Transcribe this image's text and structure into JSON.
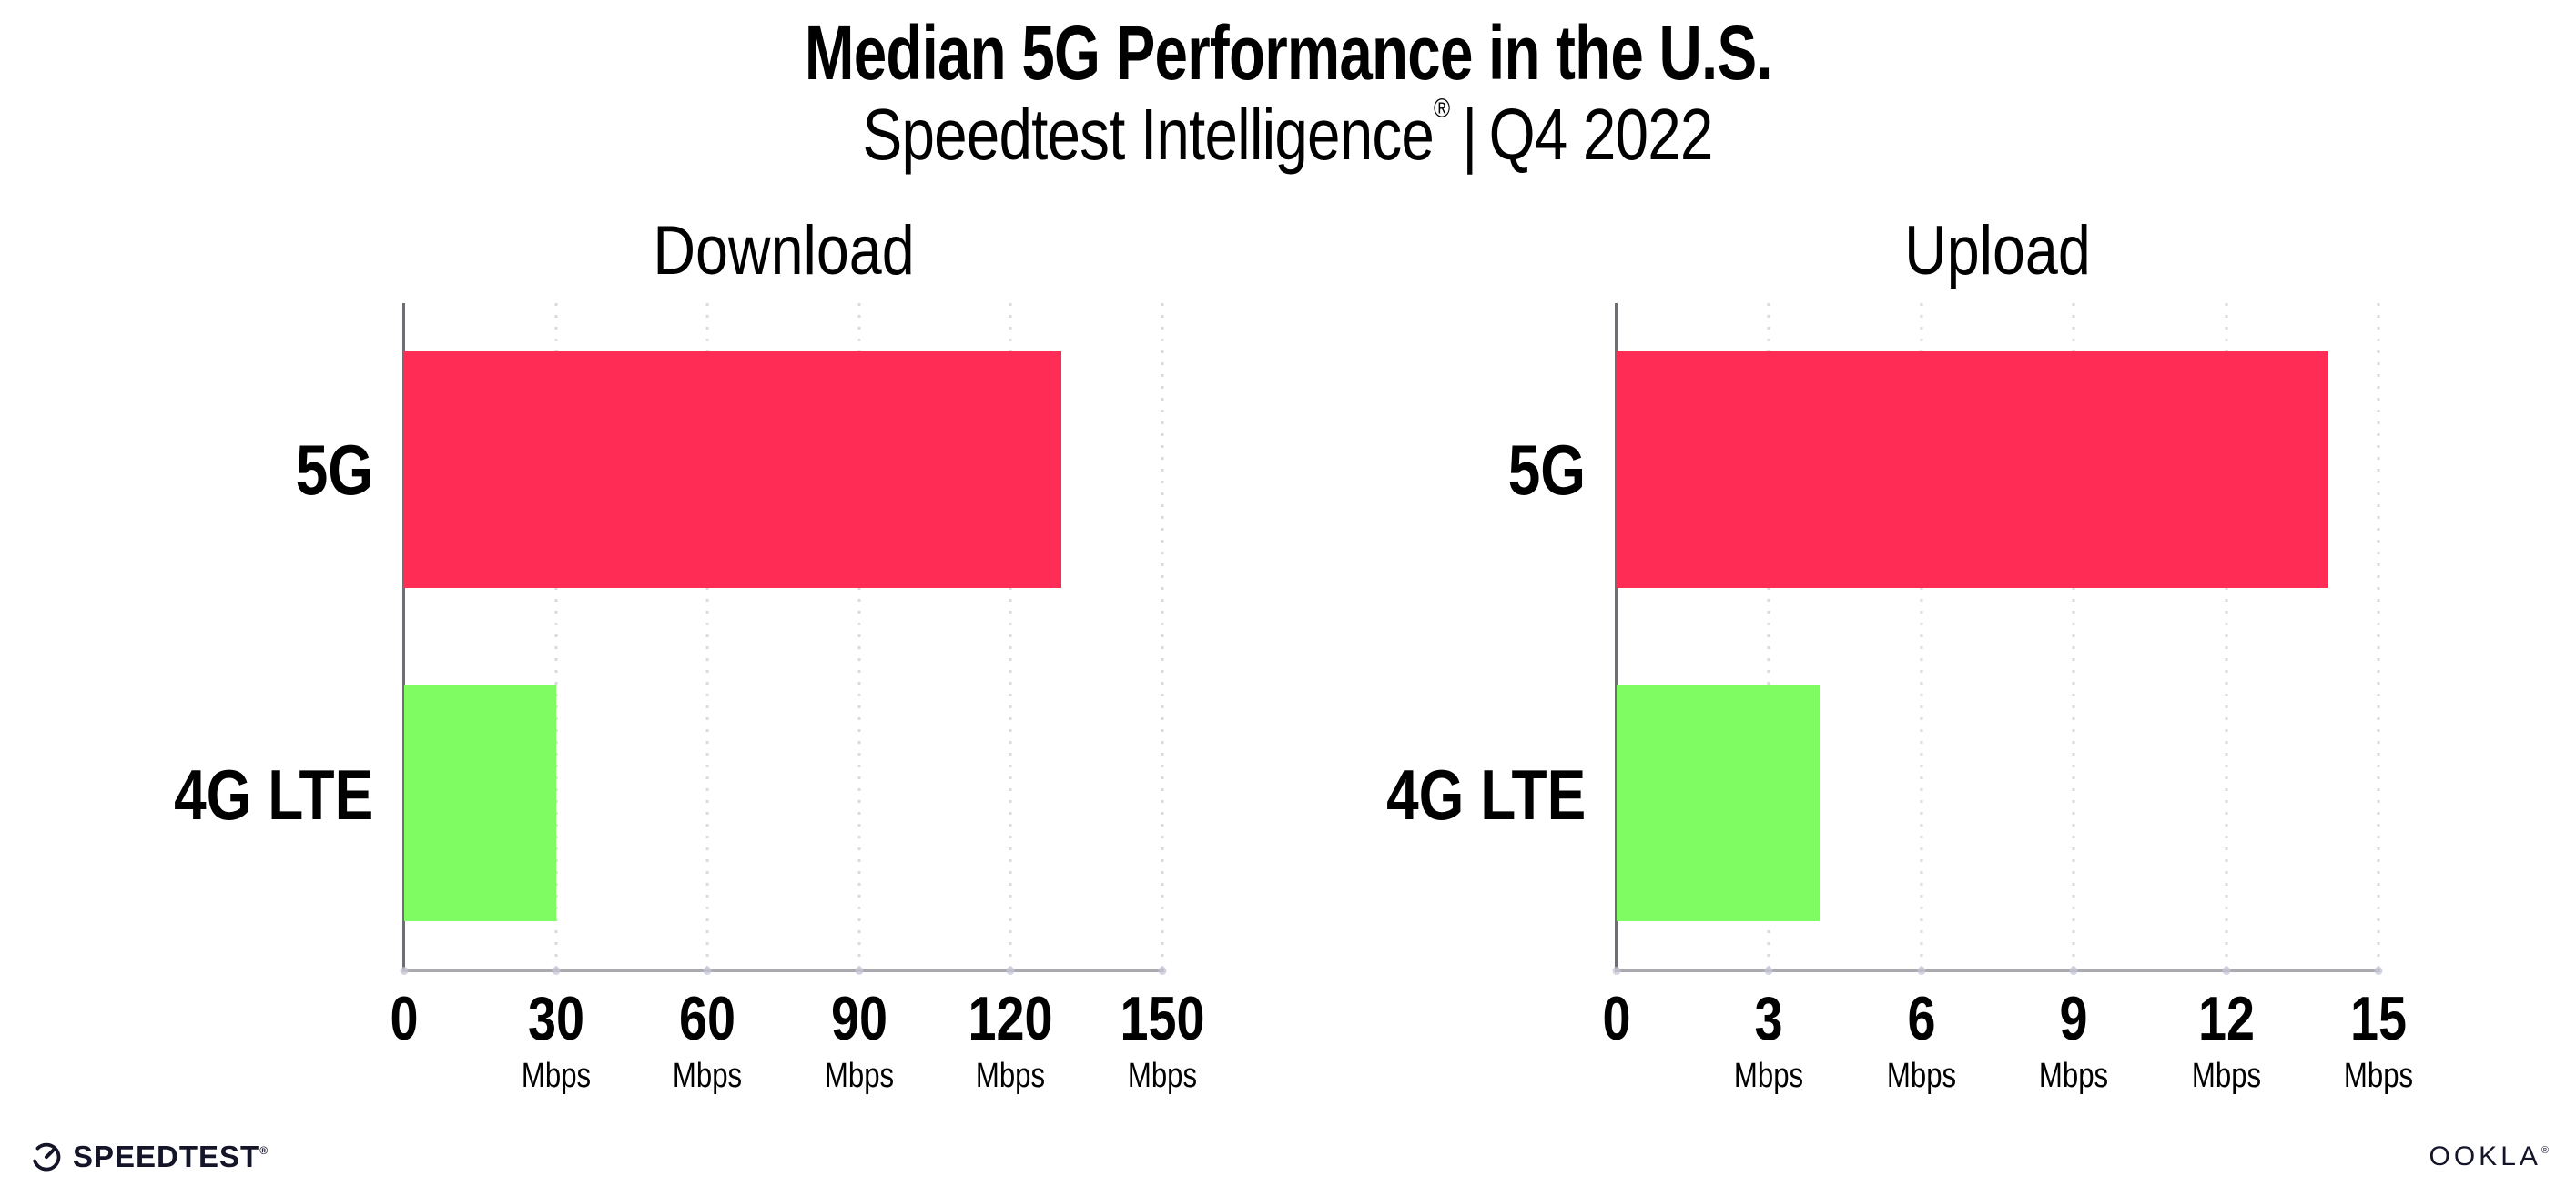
{
  "header": {
    "title": "Median 5G Performance in the U.S.",
    "subtitle": {
      "brand": "Speedtest Intelligence",
      "registered": "®",
      "separator": "|",
      "period": "Q4 2022"
    }
  },
  "chart_data": [
    {
      "type": "bar",
      "orientation": "horizontal",
      "title": "Download",
      "categories": [
        "5G",
        "4G LTE"
      ],
      "values": [
        130,
        30
      ],
      "unit": "Mbps",
      "xlim": [
        0,
        150
      ],
      "xticks": [
        0,
        30,
        60,
        90,
        120,
        150
      ],
      "xtick_unit": "Mbps",
      "bar_colors": [
        "#FF2D55",
        "#7EFC62"
      ],
      "grid": "vertical-dotted",
      "legend": "none"
    },
    {
      "type": "bar",
      "orientation": "horizontal",
      "title": "Upload",
      "categories": [
        "5G",
        "4G LTE"
      ],
      "values": [
        14,
        4
      ],
      "unit": "Mbps",
      "xlim": [
        0,
        15
      ],
      "xticks": [
        0,
        3,
        6,
        9,
        12,
        15
      ],
      "xtick_unit": "Mbps",
      "bar_colors": [
        "#FF2D55",
        "#7EFC62"
      ],
      "grid": "vertical-dotted",
      "legend": "none"
    }
  ],
  "footer": {
    "speedtest": {
      "label": "SPEEDTEST",
      "mark": "®"
    },
    "ookla": {
      "label": "OOKLA",
      "mark": "®"
    }
  },
  "colors": {
    "bar_5g": "#FF2D55",
    "bar_4g": "#7EFC62",
    "text": "#000000",
    "y_axis": "#6e6e74",
    "x_axis": "#a9a9af",
    "gridline": "#d9d9e4",
    "logo_ink": "#15152a",
    "background": "#ffffff"
  }
}
